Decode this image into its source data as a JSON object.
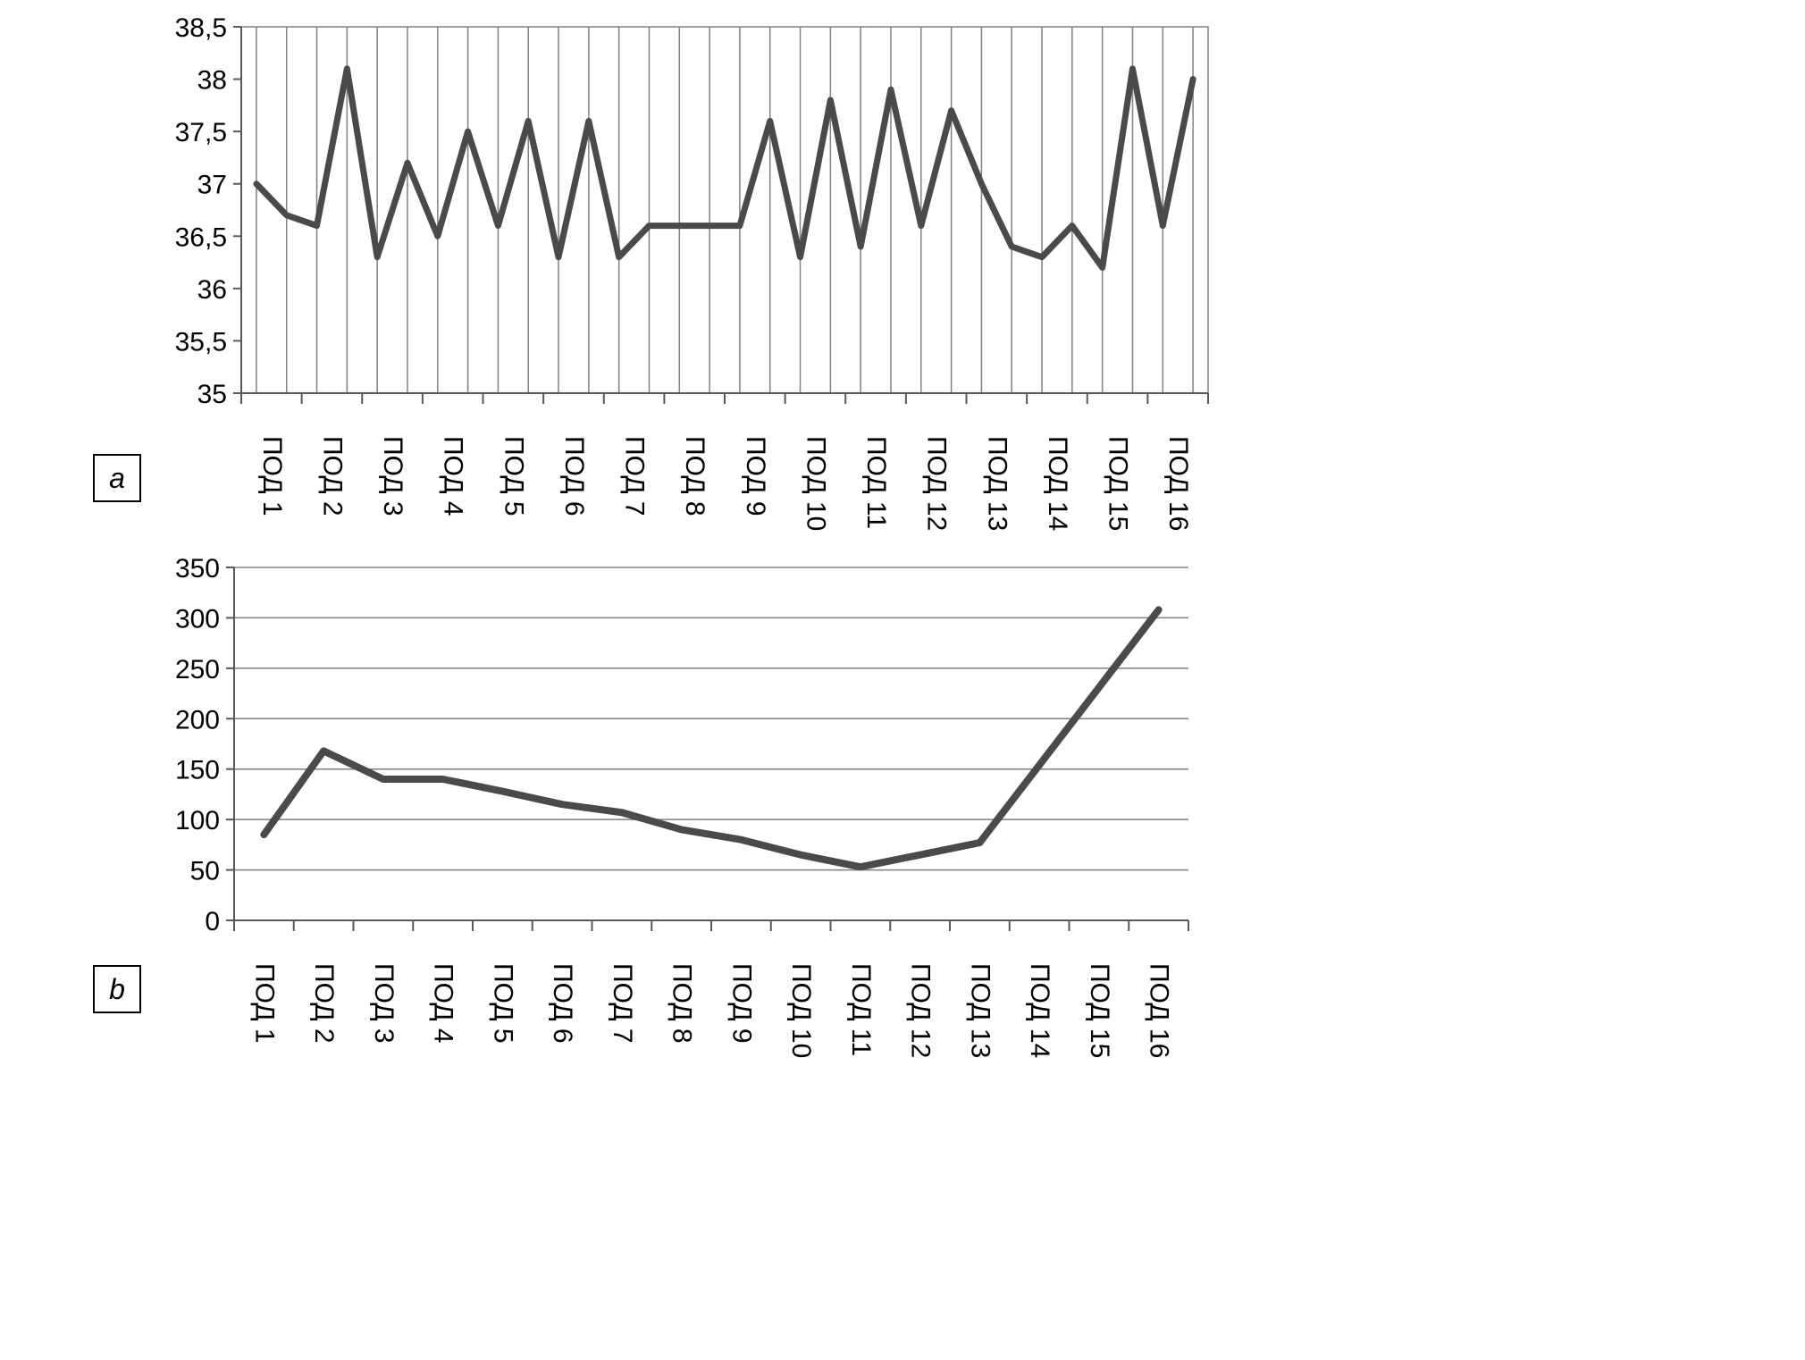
{
  "figure": {
    "background": "#ffffff",
    "panel_a_label": "a",
    "panel_b_label": "b"
  },
  "chart_data": [
    {
      "id": "a",
      "type": "line",
      "title": "",
      "xlabel": "",
      "ylabel": "",
      "legend": "none",
      "grid": "vertical",
      "line_color": "#4a4a4a",
      "categories": [
        "ПОД 1",
        "ПОД 2",
        "ПОД 3",
        "ПОД 4",
        "ПОД 5",
        "ПОД 6",
        "ПОД 7",
        "ПОД 8",
        "ПОД 9",
        "ПОД 10",
        "ПОД 11",
        "ПОД 12",
        "ПОД 13",
        "ПОД 14",
        "ПОД 15",
        "ПОД 16"
      ],
      "points_per_category": 2,
      "values": [
        37.0,
        36.7,
        36.6,
        38.1,
        36.3,
        37.2,
        36.5,
        37.5,
        36.6,
        37.6,
        36.3,
        37.6,
        36.3,
        36.6,
        36.6,
        36.6,
        36.6,
        37.6,
        36.3,
        37.8,
        36.4,
        37.9,
        36.6,
        37.7,
        37.0,
        36.4,
        36.3,
        36.6,
        36.2,
        38.1,
        36.6,
        38.0
      ],
      "ylim": [
        35,
        38.5
      ],
      "ytick_step": 0.5,
      "ytick_labels": [
        "35",
        "35,5",
        "36",
        "36,5",
        "37",
        "37,5",
        "38",
        "38,5"
      ]
    },
    {
      "id": "b",
      "type": "line",
      "title": "",
      "xlabel": "",
      "ylabel": "",
      "legend": "none",
      "grid": "horizontal",
      "line_color": "#4a4a4a",
      "categories": [
        "ПОД 1",
        "ПОД 2",
        "ПОД 3",
        "ПОД 4",
        "ПОД 5",
        "ПОД 6",
        "ПОД 7",
        "ПОД 8",
        "ПОД 9",
        "ПОД 10",
        "ПОД 11",
        "ПОД 12",
        "ПОД 13",
        "ПОД 14",
        "ПОД 15",
        "ПОД 16"
      ],
      "points_per_category": 1,
      "values": [
        85,
        168,
        140,
        140,
        128,
        115,
        107,
        90,
        80,
        65,
        53,
        65,
        77,
        154,
        231,
        308
      ],
      "ylim": [
        0,
        350
      ],
      "ytick_step": 50,
      "ytick_labels": [
        "0",
        "50",
        "100",
        "150",
        "200",
        "250",
        "300",
        "350"
      ]
    }
  ]
}
